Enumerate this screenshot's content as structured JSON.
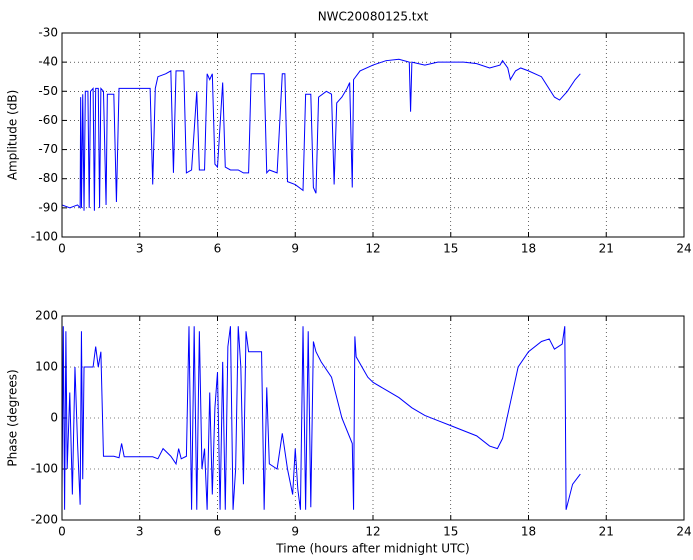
{
  "chart_data": [
    {
      "type": "line",
      "title": "NWC20080125.txt",
      "ylabel": "Amplitude (dB)",
      "xlim": [
        0,
        24
      ],
      "xticks": [
        0,
        3,
        6,
        9,
        12,
        15,
        18,
        21,
        24
      ],
      "ylim": [
        -100,
        -30
      ],
      "yticks": [
        -100,
        -90,
        -80,
        -70,
        -60,
        -50,
        -40,
        -30
      ],
      "grid": true,
      "x": [
        0,
        0.3,
        0.6,
        0.7,
        0.72,
        0.75,
        0.8,
        0.85,
        0.9,
        1.0,
        1.05,
        1.1,
        1.2,
        1.25,
        1.3,
        1.4,
        1.45,
        1.5,
        1.6,
        1.7,
        1.75,
        2.0,
        2.1,
        2.2,
        2.5,
        3.0,
        3.4,
        3.5,
        3.6,
        3.7,
        4.0,
        4.2,
        4.3,
        4.4,
        4.6,
        4.7,
        4.8,
        5.0,
        5.2,
        5.3,
        5.5,
        5.6,
        5.7,
        5.8,
        5.9,
        6.0,
        6.2,
        6.3,
        6.5,
        6.8,
        7.0,
        7.2,
        7.3,
        7.5,
        7.8,
        7.9,
        8.0,
        8.3,
        8.5,
        8.6,
        8.7,
        9.0,
        9.3,
        9.4,
        9.5,
        9.6,
        9.7,
        9.8,
        9.9,
        10.2,
        10.4,
        10.5,
        10.6,
        10.8,
        11.0,
        11.1,
        11.2,
        11.25,
        11.5,
        12,
        12.5,
        13,
        13.4,
        13.45,
        13.5,
        14,
        14.5,
        15,
        15.5,
        16,
        16.5,
        16.9,
        17.0,
        17.2,
        17.3,
        17.5,
        17.7,
        18,
        18.5,
        19,
        19.2,
        19.5,
        19.8,
        20.0
      ],
      "series": [
        {
          "color": "#0000ff",
          "values": [
            -89,
            -90,
            -89,
            -90,
            -52,
            -90,
            -51,
            -91,
            -50,
            -50,
            -90,
            -50,
            -49,
            -91,
            -49,
            -49,
            -90,
            -49,
            -50,
            -89,
            -51,
            -51,
            -88,
            -49,
            -49,
            -49,
            -49,
            -82,
            -49,
            -45,
            -44,
            -43,
            -78,
            -43,
            -43,
            -43,
            -78,
            -77,
            -50,
            -77,
            -77,
            -44,
            -46,
            -44,
            -75,
            -76,
            -47,
            -76,
            -77,
            -77,
            -78,
            -78,
            -44,
            -44,
            -44,
            -78,
            -77,
            -78,
            -44,
            -44,
            -81,
            -82,
            -84,
            -51,
            -51,
            -51,
            -83,
            -85,
            -52,
            -50,
            -51,
            -82,
            -54,
            -52,
            -49,
            -47,
            -83,
            -46,
            -43,
            -41,
            -39.5,
            -39,
            -40,
            -57,
            -40,
            -41,
            -40,
            -40,
            -40,
            -40.5,
            -42,
            -41,
            -39.5,
            -42,
            -46,
            -43,
            -42,
            -43,
            -45,
            -52,
            -53,
            -50,
            -46,
            -44
          ]
        }
      ]
    },
    {
      "type": "line",
      "xlabel": "Time (hours after midnight UTC)",
      "ylabel": "Phase (degrees)",
      "xlim": [
        0,
        24
      ],
      "xticks": [
        0,
        3,
        6,
        9,
        12,
        15,
        18,
        21,
        24
      ],
      "ylim": [
        -200,
        200
      ],
      "yticks": [
        -200,
        -100,
        0,
        100,
        200
      ],
      "grid": true,
      "x": [
        0,
        0.05,
        0.1,
        0.15,
        0.2,
        0.3,
        0.4,
        0.5,
        0.6,
        0.7,
        0.75,
        0.8,
        0.85,
        0.9,
        1.0,
        1.2,
        1.3,
        1.4,
        1.5,
        1.6,
        2.0,
        2.2,
        2.3,
        2.4,
        3,
        3.5,
        3.7,
        3.9,
        4.2,
        4.4,
        4.5,
        4.6,
        4.8,
        4.9,
        5.0,
        5.1,
        5.2,
        5.3,
        5.4,
        5.5,
        5.6,
        5.7,
        5.8,
        5.9,
        6.0,
        6.1,
        6.2,
        6.3,
        6.4,
        6.5,
        6.6,
        6.7,
        6.8,
        6.9,
        7.0,
        7.1,
        7.2,
        7.4,
        7.7,
        7.8,
        7.9,
        8.0,
        8.3,
        8.5,
        8.7,
        8.9,
        9.0,
        9.1,
        9.2,
        9.3,
        9.4,
        9.5,
        9.6,
        9.7,
        9.8,
        10,
        10.4,
        10.8,
        11.2,
        11.25,
        11.3,
        11.35,
        11.8,
        12,
        12.5,
        13,
        13.5,
        14,
        14.5,
        15,
        15.5,
        16,
        16.5,
        16.8,
        17,
        17.3,
        17.6,
        18,
        18.5,
        18.8,
        19,
        19.3,
        19.4,
        19.45,
        19.7,
        20
      ],
      "series": [
        {
          "color": "#0000ff",
          "values": [
            -150,
            180,
            -180,
            170,
            -100,
            50,
            -150,
            100,
            -50,
            -170,
            170,
            -120,
            100,
            100,
            100,
            100,
            140,
            100,
            130,
            -75,
            -75,
            -78,
            -50,
            -76,
            -76,
            -76,
            -80,
            -60,
            -75,
            -90,
            -60,
            -80,
            -75,
            180,
            -180,
            180,
            -180,
            170,
            -100,
            -60,
            -180,
            50,
            -150,
            20,
            90,
            -180,
            110,
            -180,
            140,
            180,
            -180,
            -100,
            180,
            100,
            -130,
            170,
            130,
            130,
            130,
            -180,
            60,
            -90,
            -100,
            -30,
            -100,
            -150,
            -60,
            -140,
            -180,
            180,
            -180,
            170,
            -175,
            150,
            130,
            110,
            80,
            0,
            -50,
            -180,
            160,
            120,
            80,
            70,
            55,
            40,
            20,
            5,
            -5,
            -15,
            -25,
            -35,
            -55,
            -60,
            -40,
            30,
            100,
            130,
            150,
            155,
            135,
            145,
            180,
            -180,
            -130,
            -110
          ]
        }
      ]
    }
  ]
}
